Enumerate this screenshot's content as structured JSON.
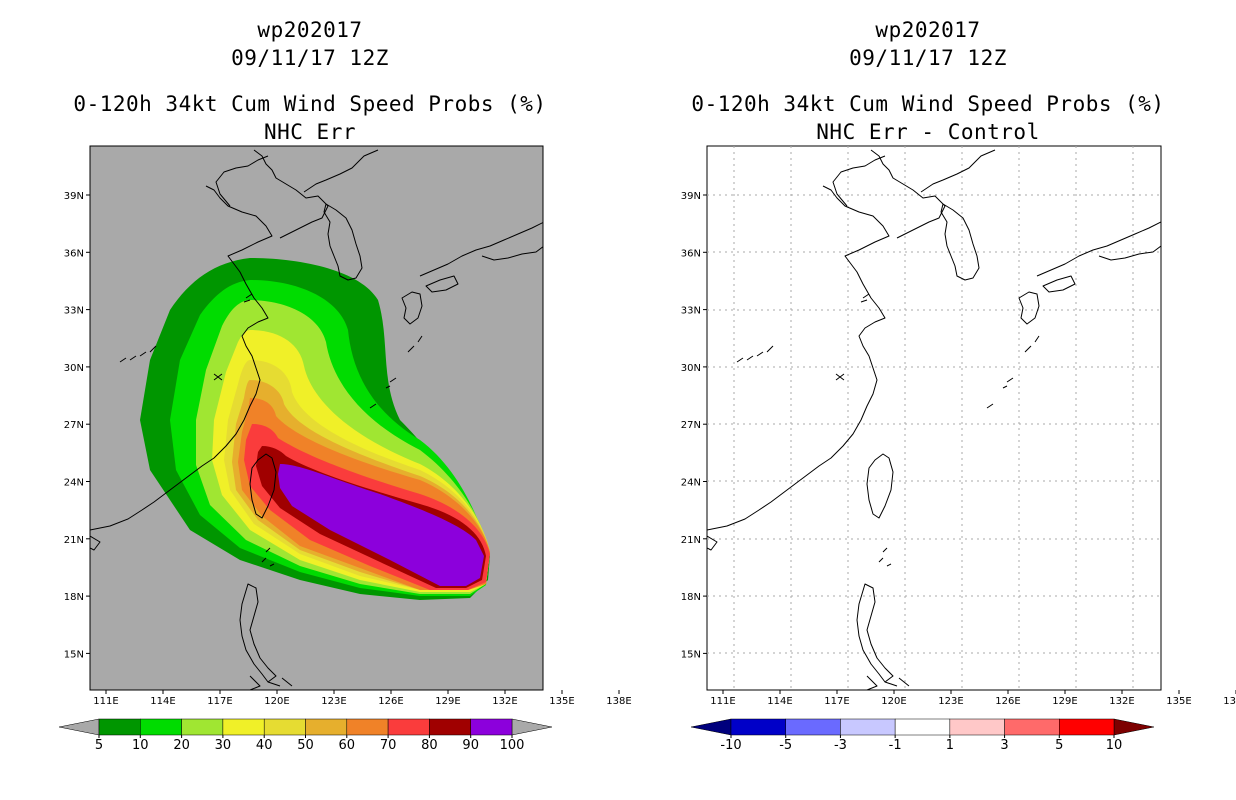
{
  "left": {
    "title1": "wp202017",
    "title2": "09/11/17 12Z",
    "title3": "0-120h 34kt Cum Wind Speed Probs (%)",
    "title4": "NHC Err",
    "colorbar": {
      "colors": [
        "#009600",
        "#00dc00",
        "#a0e632",
        "#f0f028",
        "#e6dc32",
        "#e6af2d",
        "#f08228",
        "#fa3c3c",
        "#a00000",
        "#8c00dc"
      ],
      "labels": [
        "5",
        "10",
        "20",
        "30",
        "40",
        "50",
        "60",
        "70",
        "80",
        "90",
        "100"
      ]
    }
  },
  "right": {
    "title1": "wp202017",
    "title2": "09/11/17 12Z",
    "title3": "0-120h 34kt Cum Wind Speed Probs (%)",
    "title4": "NHC Err - Control",
    "colorbar": {
      "colors": [
        "#0000c8",
        "#6a6aff",
        "#c8c8ff",
        "#ffffff",
        "#ffc8c8",
        "#ff6a6a",
        "#ff0000"
      ],
      "labels": [
        "-10",
        "-5",
        "-3",
        "-1",
        "1",
        "3",
        "5",
        "10"
      ]
    }
  },
  "axes": {
    "lon_labels": [
      "111E",
      "114E",
      "117E",
      "120E",
      "123E",
      "126E",
      "129E",
      "132E",
      "135E",
      "138E"
    ],
    "lat_labels": [
      "39N",
      "36N",
      "33N",
      "30N",
      "27N",
      "24N",
      "21N",
      "18N",
      "15N"
    ]
  }
}
